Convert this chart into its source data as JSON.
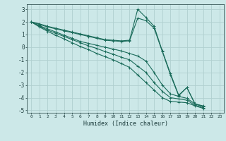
{
  "xlabel": "Humidex (Indice chaleur)",
  "xlim": [
    -0.5,
    23.5
  ],
  "ylim": [
    -5.2,
    3.4
  ],
  "xticks": [
    0,
    1,
    2,
    3,
    4,
    5,
    6,
    7,
    8,
    9,
    10,
    11,
    12,
    13,
    14,
    15,
    16,
    17,
    18,
    19,
    20,
    21,
    22,
    23
  ],
  "yticks": [
    -5,
    -4,
    -3,
    -2,
    -1,
    0,
    1,
    2,
    3
  ],
  "bg_color": "#cce8e8",
  "grid_color": "#b0d0d0",
  "line_color": "#1a6b5a",
  "lines": [
    [
      2.0,
      1.85,
      1.65,
      1.5,
      1.35,
      1.2,
      1.05,
      0.9,
      0.75,
      0.6,
      0.55,
      0.5,
      0.55,
      3.0,
      2.35,
      1.65,
      -0.3,
      -2.1,
      -3.8,
      -3.2,
      -4.5,
      -4.65,
      null,
      null
    ],
    [
      2.0,
      1.8,
      1.6,
      1.45,
      1.3,
      1.15,
      1.0,
      0.85,
      0.7,
      0.55,
      0.5,
      0.45,
      0.5,
      2.3,
      2.1,
      1.5,
      -0.35,
      -2.2,
      -3.85,
      -3.2,
      -4.5,
      -4.7,
      null,
      null
    ],
    [
      2.0,
      1.7,
      1.45,
      1.2,
      0.95,
      0.7,
      0.45,
      0.3,
      0.15,
      0.0,
      -0.15,
      -0.3,
      -0.5,
      -0.7,
      -1.1,
      -2.0,
      -3.0,
      -3.7,
      -3.9,
      -4.05,
      -4.5,
      -4.7,
      null,
      null
    ],
    [
      2.0,
      1.65,
      1.35,
      1.1,
      0.85,
      0.6,
      0.35,
      0.1,
      -0.1,
      -0.35,
      -0.55,
      -0.8,
      -1.0,
      -1.5,
      -2.0,
      -2.8,
      -3.5,
      -4.0,
      -4.1,
      -4.2,
      -4.6,
      -4.8,
      null,
      null
    ],
    [
      2.0,
      1.6,
      1.25,
      0.95,
      0.65,
      0.35,
      0.05,
      -0.2,
      -0.5,
      -0.75,
      -1.0,
      -1.3,
      -1.6,
      -2.2,
      -2.8,
      -3.4,
      -4.0,
      -4.3,
      -4.35,
      -4.4,
      -4.65,
      -4.85,
      null,
      null
    ]
  ]
}
